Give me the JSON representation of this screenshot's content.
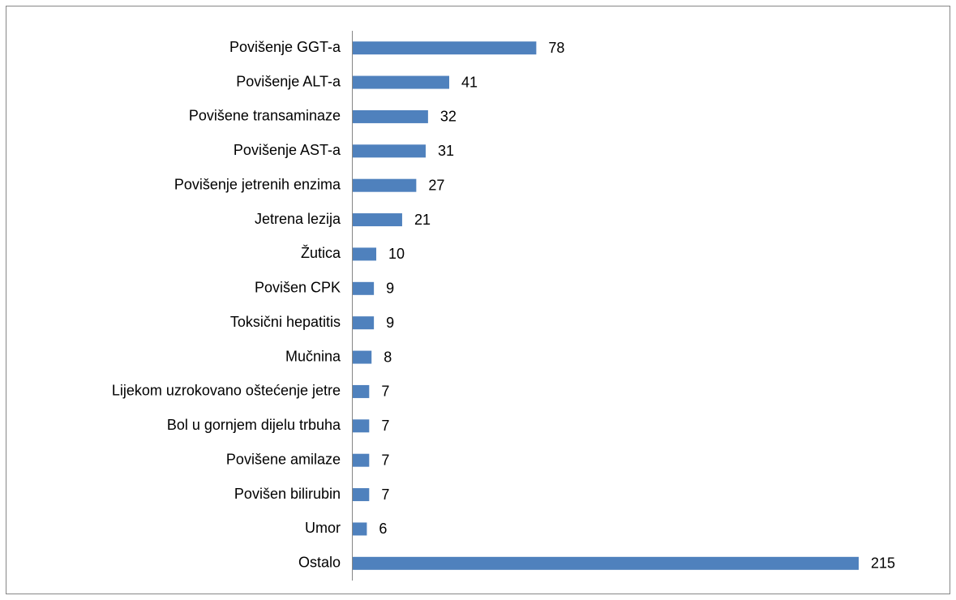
{
  "chart_data": {
    "type": "bar",
    "orientation": "horizontal",
    "color": "#4f81bd",
    "categories": [
      "Povišenje GGT-a",
      "Povišenje ALT-a",
      "Povišene transaminaze",
      "Povišenje AST-a",
      "Povišenje jetrenih enzima",
      "Jetrena lezija",
      "Žutica",
      "Povišen CPK",
      "Toksični hepatitis",
      "Mučnina",
      "Lijekom uzrokovano oštećenje jetre",
      "Bol u gornjem dijelu trbuha",
      "Povišene amilaze",
      "Povišen bilirubin",
      "Umor",
      "Ostalo"
    ],
    "values": [
      78,
      41,
      32,
      31,
      27,
      21,
      10,
      9,
      9,
      8,
      7,
      7,
      7,
      7,
      6,
      215
    ]
  }
}
